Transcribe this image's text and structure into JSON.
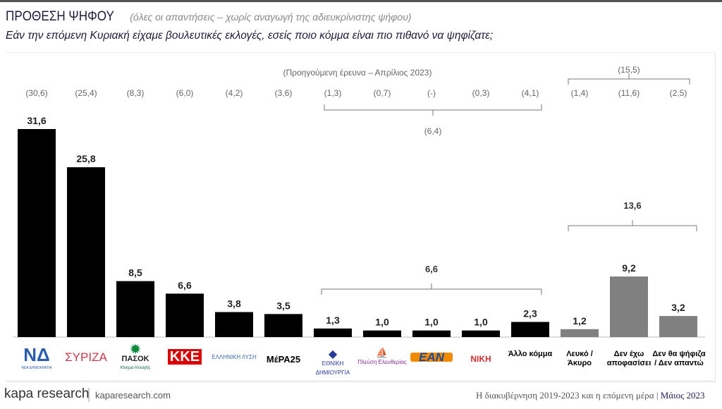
{
  "header": {
    "title": "ΠΡΟΘΕΣΗ ΨΗΦΟΥ",
    "subtitle": "(όλες οι απαντήσεις – χωρίς αναγωγή της αδιευκρίνιστης ψήφου)",
    "question": "Εάν την επόμενη Κυριακή είχαμε βουλευτικές εκλογές, εσείς ποιο κόμμα είναι πιο πιθανό να ψηφίζατε;"
  },
  "chart_data": {
    "type": "bar",
    "title": "ΠΡΟΘΕΣΗ ΨΗΦΟΥ",
    "categories": [
      "ΝΔ",
      "ΣΥΡΙΖΑ",
      "ΠΑΣΟΚ",
      "ΚΚΕ",
      "Ελληνική Λύση",
      "ΜέΡΑ25",
      "Εθνική Δημιουργία",
      "Πλεύση Ελευθερίας",
      "ΕΑΝ",
      "ΝΙΚΗ",
      "Άλλο κόμμα",
      "Λευκό / Άκυρο",
      "Δεν έχω αποφασίσει",
      "Δεν θα ψήφιζα / Δεν απαντώ"
    ],
    "values": [
      31.6,
      25.8,
      8.5,
      6.6,
      3.8,
      3.5,
      1.3,
      1.0,
      1.0,
      1.0,
      2.3,
      1.2,
      9.2,
      3.2
    ],
    "value_labels": [
      "31,6",
      "25,8",
      "8,5",
      "6,6",
      "3,8",
      "3,5",
      "1,3",
      "1,0",
      "1,0",
      "1,0",
      "2,3",
      "1,2",
      "9,2",
      "3,2"
    ],
    "previous_labels": [
      "(30,6)",
      "(25,4)",
      "(8,3)",
      "(6,0)",
      "(4,2)",
      "(3,6)",
      "(1,3)",
      "(0,7)",
      "(-)",
      "(0,3)",
      "(4,1)",
      "(1,4)",
      "(11,6)",
      "(2,5)"
    ],
    "colors": [
      "#000000",
      "#000000",
      "#000000",
      "#000000",
      "#000000",
      "#000000",
      "#000000",
      "#000000",
      "#000000",
      "#000000",
      "#000000",
      "#808080",
      "#808080",
      "#808080"
    ],
    "previous_note": "(Προηγούμενη έρευνα – Απρίλιος 2023)",
    "groups": [
      {
        "label": "6,6",
        "previous": "(6,4)",
        "from": 6,
        "to": 10
      },
      {
        "label": "13,6",
        "previous": "(15,5)",
        "from": 11,
        "to": 13
      }
    ],
    "ylim": [
      0,
      32
    ]
  },
  "logos": [
    "ΝΔ",
    "ΝΕΑ ΔΗΜΟΚΡΑΤΙΑ",
    "ΣΥΡΙΖΑ",
    "ΠΑΣΟΚ",
    "Κίνημα Αλλαγής",
    "ΚΚΕ",
    "ΕΛΛΗΝΙΚΗ ΛΥΣΗ",
    "ΜέΡΑ25",
    "ΕΘΝΙΚΗ ΔΗΜΙΟΥΡΓΙΑ",
    "Πλεύση Ελευθερίας",
    "ΕΑΝ",
    "ΝΙΚΗ"
  ],
  "text_labels": [
    "Άλλο κόμμα",
    "Λευκό / Άκυρο",
    "Δεν έχω αποφασίσει",
    "Δεν θα ψήφιζα / Δεν απαντώ"
  ],
  "footer": {
    "brand": "kapa research",
    "url": "kaparesearch.com",
    "right": "Η διακυβέρνηση 2019-2023 και η επόμενη μέρα",
    "date": "Μάιος 2023"
  }
}
